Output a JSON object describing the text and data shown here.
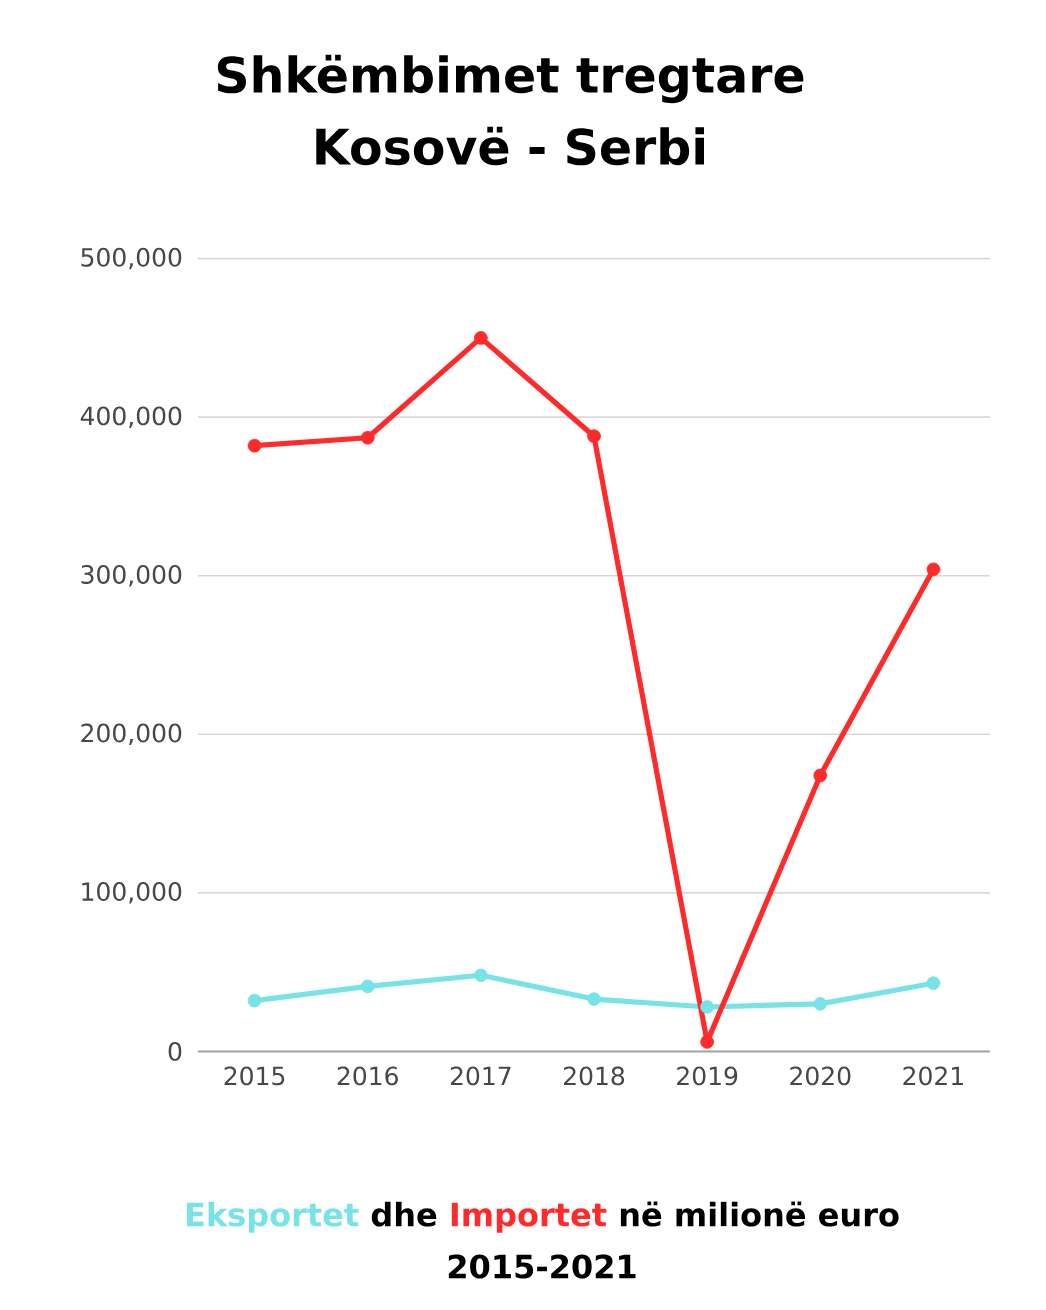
{
  "chart_data": {
    "type": "line",
    "title": "Shkëmbimet tregtare Kosovë - Serbi",
    "categories": [
      "2015",
      "2016",
      "2017",
      "2018",
      "2019",
      "2020",
      "2021"
    ],
    "series": [
      {
        "name": "Eksportet",
        "color": "#78e3e6",
        "values": [
          32000,
          41000,
          48000,
          33000,
          28000,
          30000,
          43000
        ]
      },
      {
        "name": "Importet",
        "color": "#ff2b2b",
        "values": [
          382000,
          387000,
          450000,
          388000,
          6000,
          174000,
          304000
        ]
      }
    ],
    "ylim": [
      0,
      500000
    ],
    "yticks": [
      0,
      {
        "value": 100000,
        "label": "100,000"
      },
      {
        "value": 200000,
        "label": "200,000"
      },
      {
        "value": 300000,
        "label": "300,000"
      },
      {
        "value": 400000,
        "label": "400,000"
      },
      {
        "value": 500000,
        "label": "500,000"
      }
    ],
    "grid": "y",
    "legend": "bottom",
    "marker": "circle",
    "line_style": "solid",
    "annotations": [
      "dhe",
      "në milionë euro",
      "2015-2021"
    ]
  }
}
